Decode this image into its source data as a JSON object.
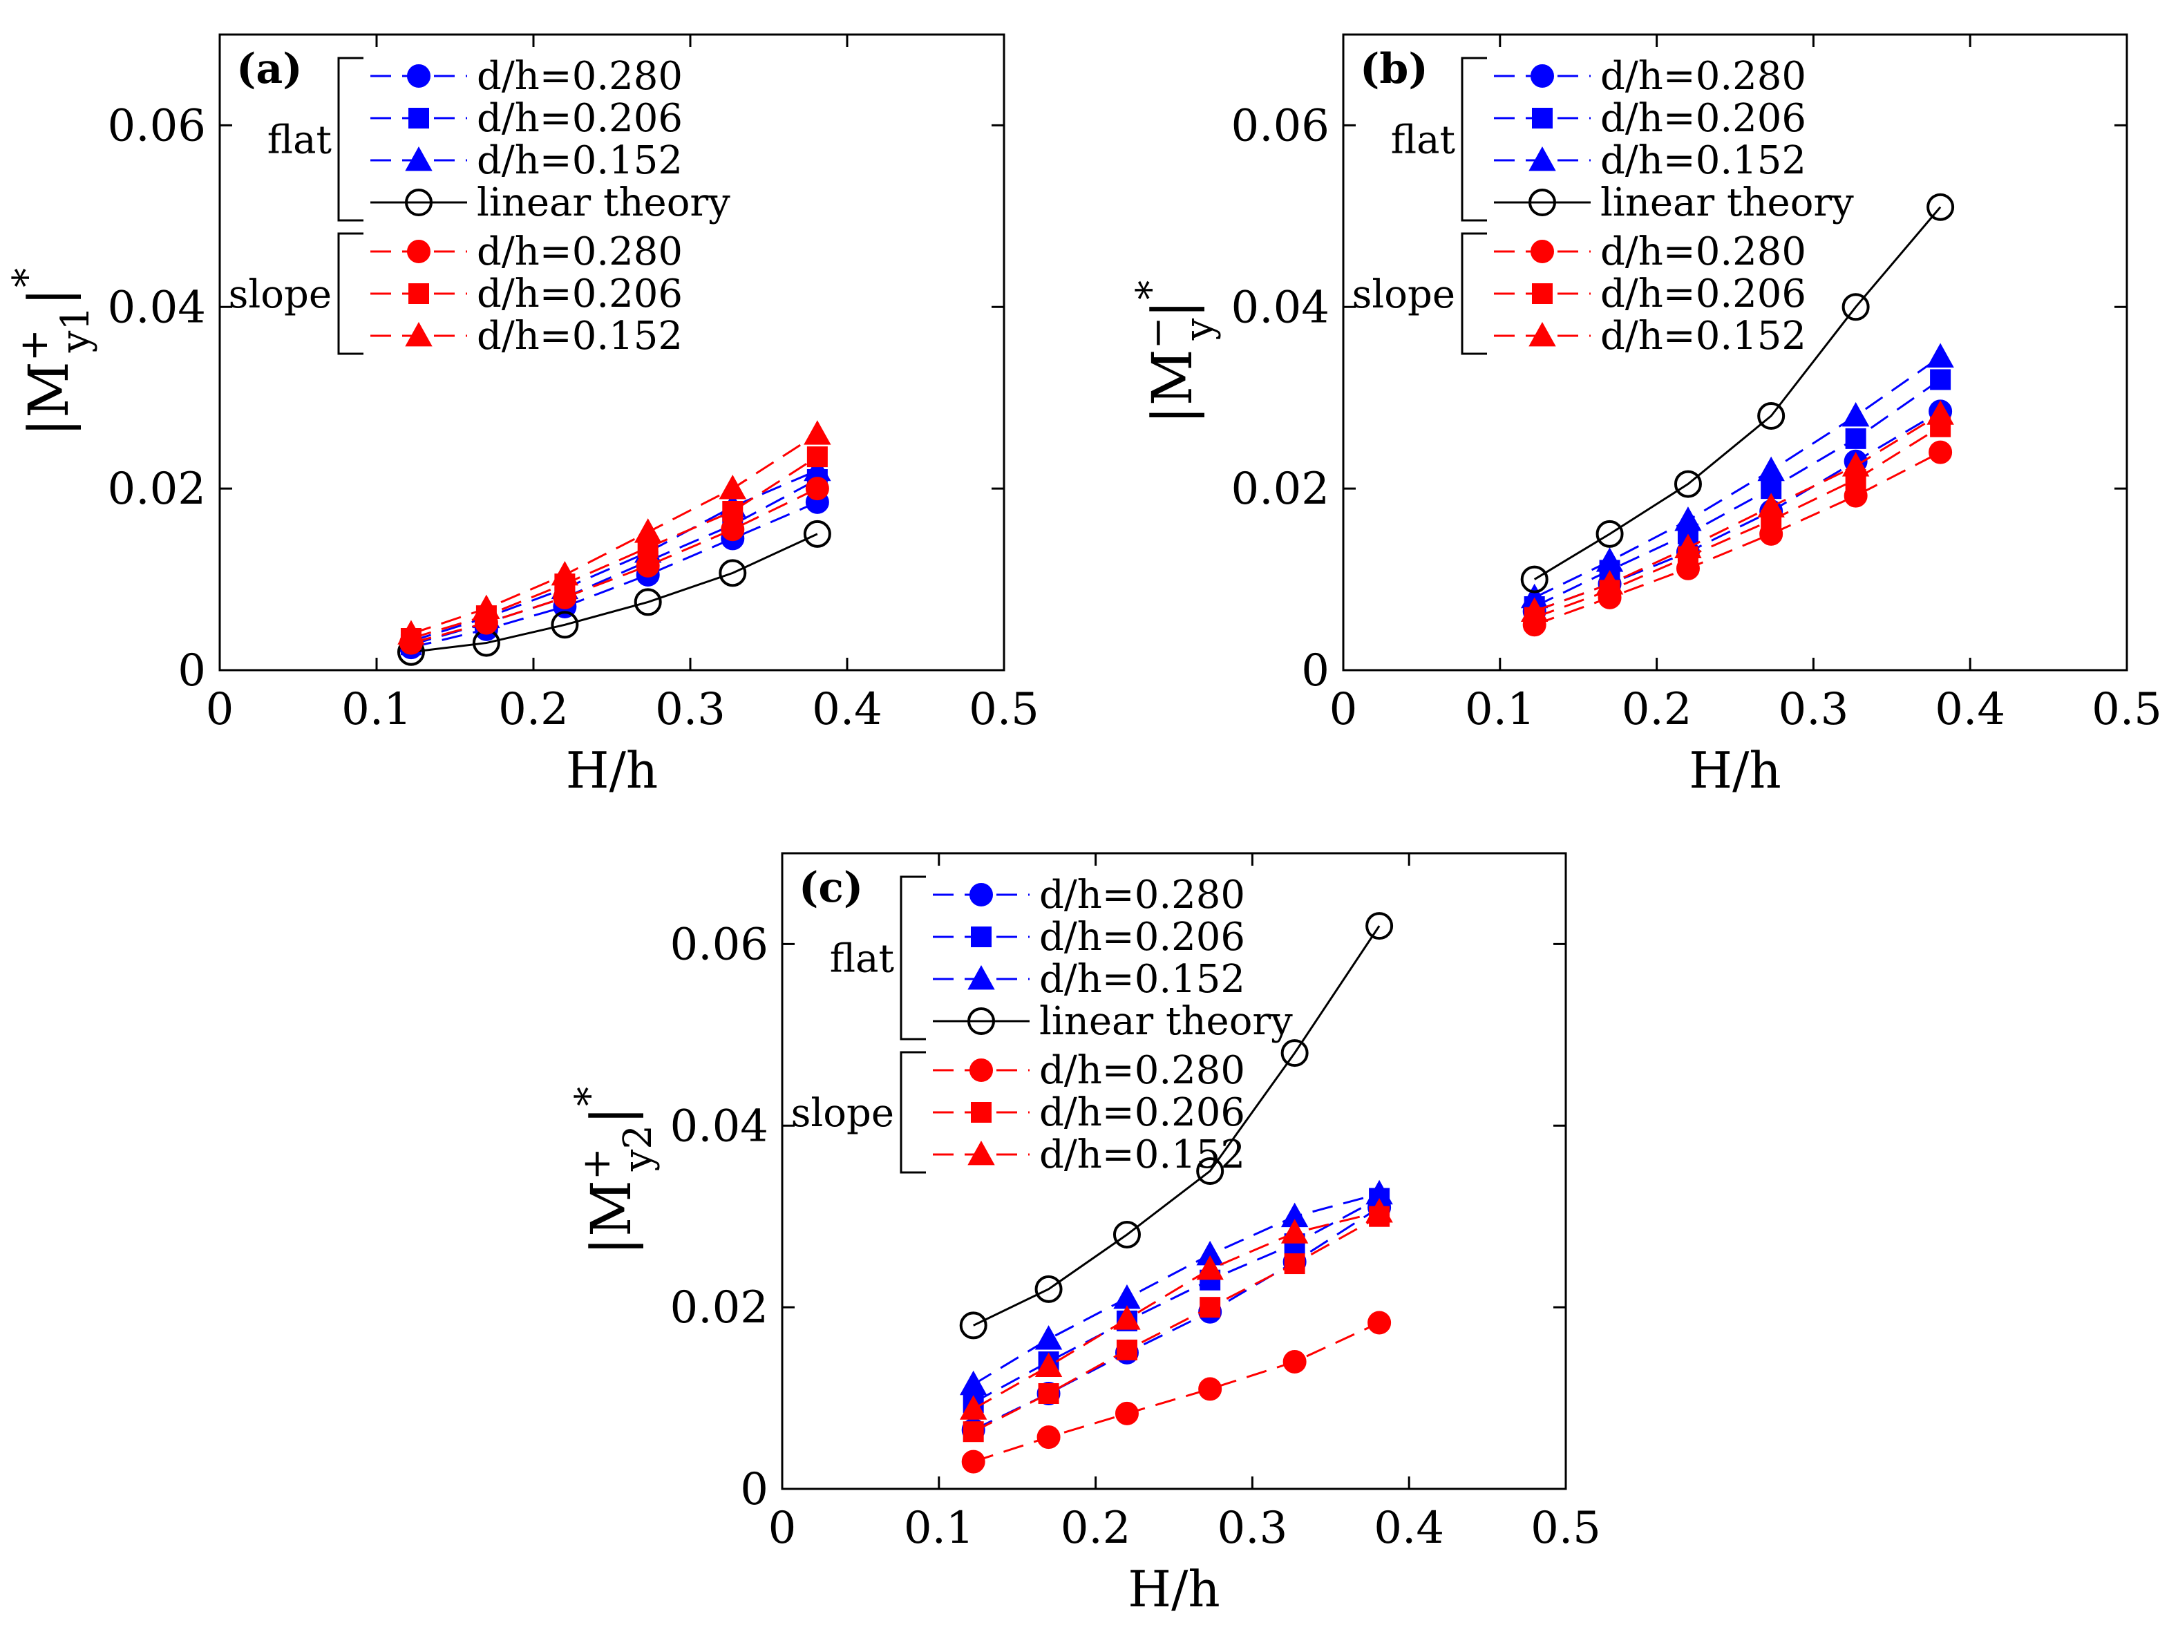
{
  "chart_data": [
    {
      "type": "line",
      "panel_label": "(a)",
      "ylabel_text": "|M",
      "ylabel_sup": "+",
      "ylabel_sub": "y1",
      "ylabel_tail": "|",
      "ylabel_star": "*",
      "xlabel": "H/h",
      "xlim": [
        0,
        0.5
      ],
      "ylim": [
        0,
        0.07
      ],
      "xticks": [
        "0",
        "0.1",
        "0.2",
        "0.3",
        "0.4",
        "0.5"
      ],
      "yticks": [
        "0",
        "0.02",
        "0.04",
        "0.06"
      ],
      "x": [
        0.122,
        0.17,
        0.22,
        0.273,
        0.327,
        0.381
      ],
      "series": [
        {
          "name": "d/h=0.280",
          "group": "flat",
          "color": "#0000ff",
          "marker": "circle",
          "dash": true,
          "values": [
            0.0025,
            0.0045,
            0.007,
            0.0105,
            0.0145,
            0.0185
          ]
        },
        {
          "name": "d/h=0.206",
          "group": "flat",
          "color": "#0000ff",
          "marker": "square",
          "dash": true,
          "values": [
            0.0028,
            0.0052,
            0.008,
            0.012,
            0.016,
            0.021
          ]
        },
        {
          "name": "d/h=0.152",
          "group": "flat",
          "color": "#0000ff",
          "marker": "triangle",
          "dash": true,
          "values": [
            0.0032,
            0.0058,
            0.009,
            0.013,
            0.018,
            0.022
          ]
        },
        {
          "name": "linear theory",
          "group": "flat",
          "color": "#000000",
          "marker": "open-circle",
          "dash": false,
          "values": [
            0.002,
            0.003,
            0.005,
            0.0075,
            0.0107,
            0.015
          ]
        },
        {
          "name": "d/h=0.280",
          "group": "slope",
          "color": "#ff0000",
          "marker": "circle",
          "dash": true,
          "values": [
            0.003,
            0.0052,
            0.008,
            0.0115,
            0.0155,
            0.02
          ]
        },
        {
          "name": "d/h=0.206",
          "group": "slope",
          "color": "#ff0000",
          "marker": "square",
          "dash": true,
          "values": [
            0.0035,
            0.006,
            0.0095,
            0.0135,
            0.0175,
            0.0235
          ]
        },
        {
          "name": "d/h=0.152",
          "group": "slope",
          "color": "#ff0000",
          "marker": "triangle",
          "dash": true,
          "values": [
            0.004,
            0.0068,
            0.0105,
            0.0152,
            0.02,
            0.026
          ]
        }
      ],
      "legend_groups": [
        "flat",
        "slope"
      ]
    },
    {
      "type": "line",
      "panel_label": "(b)",
      "ylabel_text": "|M",
      "ylabel_sup": "−",
      "ylabel_sub": "y",
      "ylabel_tail": "|",
      "ylabel_star": "*",
      "xlabel": "H/h",
      "xlim": [
        0,
        0.5
      ],
      "ylim": [
        0,
        0.07
      ],
      "xticks": [
        "0",
        "0.1",
        "0.2",
        "0.3",
        "0.4",
        "0.5"
      ],
      "yticks": [
        "0",
        "0.02",
        "0.04",
        "0.06"
      ],
      "x": [
        0.122,
        0.17,
        0.22,
        0.273,
        0.327,
        0.381
      ],
      "series": [
        {
          "name": "d/h=0.280",
          "group": "flat",
          "color": "#0000ff",
          "marker": "circle",
          "dash": true,
          "values": [
            0.0065,
            0.0095,
            0.013,
            0.0175,
            0.023,
            0.0285
          ]
        },
        {
          "name": "d/h=0.206",
          "group": "flat",
          "color": "#0000ff",
          "marker": "square",
          "dash": true,
          "values": [
            0.007,
            0.011,
            0.015,
            0.02,
            0.0255,
            0.032
          ]
        },
        {
          "name": "d/h=0.152",
          "group": "flat",
          "color": "#0000ff",
          "marker": "triangle",
          "dash": true,
          "values": [
            0.008,
            0.012,
            0.0165,
            0.022,
            0.028,
            0.0345
          ]
        },
        {
          "name": "linear theory",
          "group": "flat",
          "color": "#000000",
          "marker": "open-circle",
          "dash": false,
          "values": [
            0.01,
            0.015,
            0.0205,
            0.028,
            0.04,
            0.051
          ]
        },
        {
          "name": "d/h=0.280",
          "group": "slope",
          "color": "#ff0000",
          "marker": "circle",
          "dash": true,
          "values": [
            0.005,
            0.008,
            0.0112,
            0.015,
            0.0192,
            0.024
          ]
        },
        {
          "name": "d/h=0.206",
          "group": "slope",
          "color": "#ff0000",
          "marker": "square",
          "dash": true,
          "values": [
            0.0058,
            0.0088,
            0.0125,
            0.0165,
            0.021,
            0.0268
          ]
        },
        {
          "name": "d/h=0.152",
          "group": "slope",
          "color": "#ff0000",
          "marker": "triangle",
          "dash": true,
          "values": [
            0.0065,
            0.0095,
            0.0135,
            0.018,
            0.0225,
            0.0282
          ]
        }
      ],
      "legend_groups": [
        "flat",
        "slope"
      ]
    },
    {
      "type": "line",
      "panel_label": "(c)",
      "ylabel_text": "|M",
      "ylabel_sup": "+",
      "ylabel_sub": "y2",
      "ylabel_tail": "|",
      "ylabel_star": "*",
      "xlabel": "H/h",
      "xlim": [
        0,
        0.5
      ],
      "ylim": [
        0,
        0.07
      ],
      "xticks": [
        "0",
        "0.1",
        "0.2",
        "0.3",
        "0.4",
        "0.5"
      ],
      "yticks": [
        "0",
        "0.02",
        "0.04",
        "0.06"
      ],
      "x": [
        0.122,
        0.17,
        0.22,
        0.273,
        0.327,
        0.381
      ],
      "series": [
        {
          "name": "d/h=0.280",
          "group": "flat",
          "color": "#0000ff",
          "marker": "circle",
          "dash": true,
          "values": [
            0.0065,
            0.0105,
            0.015,
            0.0195,
            0.025,
            0.031
          ]
        },
        {
          "name": "d/h=0.206",
          "group": "flat",
          "color": "#0000ff",
          "marker": "square",
          "dash": true,
          "values": [
            0.0095,
            0.014,
            0.0185,
            0.023,
            0.027,
            0.032
          ]
        },
        {
          "name": "d/h=0.152",
          "group": "flat",
          "color": "#0000ff",
          "marker": "triangle",
          "dash": true,
          "values": [
            0.0115,
            0.0165,
            0.021,
            0.0258,
            0.03,
            0.0325
          ]
        },
        {
          "name": "linear theory",
          "group": "flat",
          "color": "#000000",
          "marker": "open-circle",
          "dash": false,
          "values": [
            0.018,
            0.022,
            0.028,
            0.035,
            0.048,
            0.062
          ]
        },
        {
          "name": "d/h=0.280",
          "group": "slope",
          "color": "#ff0000",
          "marker": "circle",
          "dash": true,
          "values": [
            0.003,
            0.0057,
            0.0083,
            0.011,
            0.014,
            0.0183
          ]
        },
        {
          "name": "d/h=0.206",
          "group": "slope",
          "color": "#ff0000",
          "marker": "square",
          "dash": true,
          "values": [
            0.0063,
            0.0105,
            0.0153,
            0.02,
            0.0248,
            0.03
          ]
        },
        {
          "name": "d/h=0.152",
          "group": "slope",
          "color": "#ff0000",
          "marker": "triangle",
          "dash": true,
          "values": [
            0.0088,
            0.0135,
            0.0187,
            0.0242,
            0.0282,
            0.0305
          ]
        }
      ],
      "legend_groups": [
        "flat",
        "slope"
      ]
    }
  ]
}
